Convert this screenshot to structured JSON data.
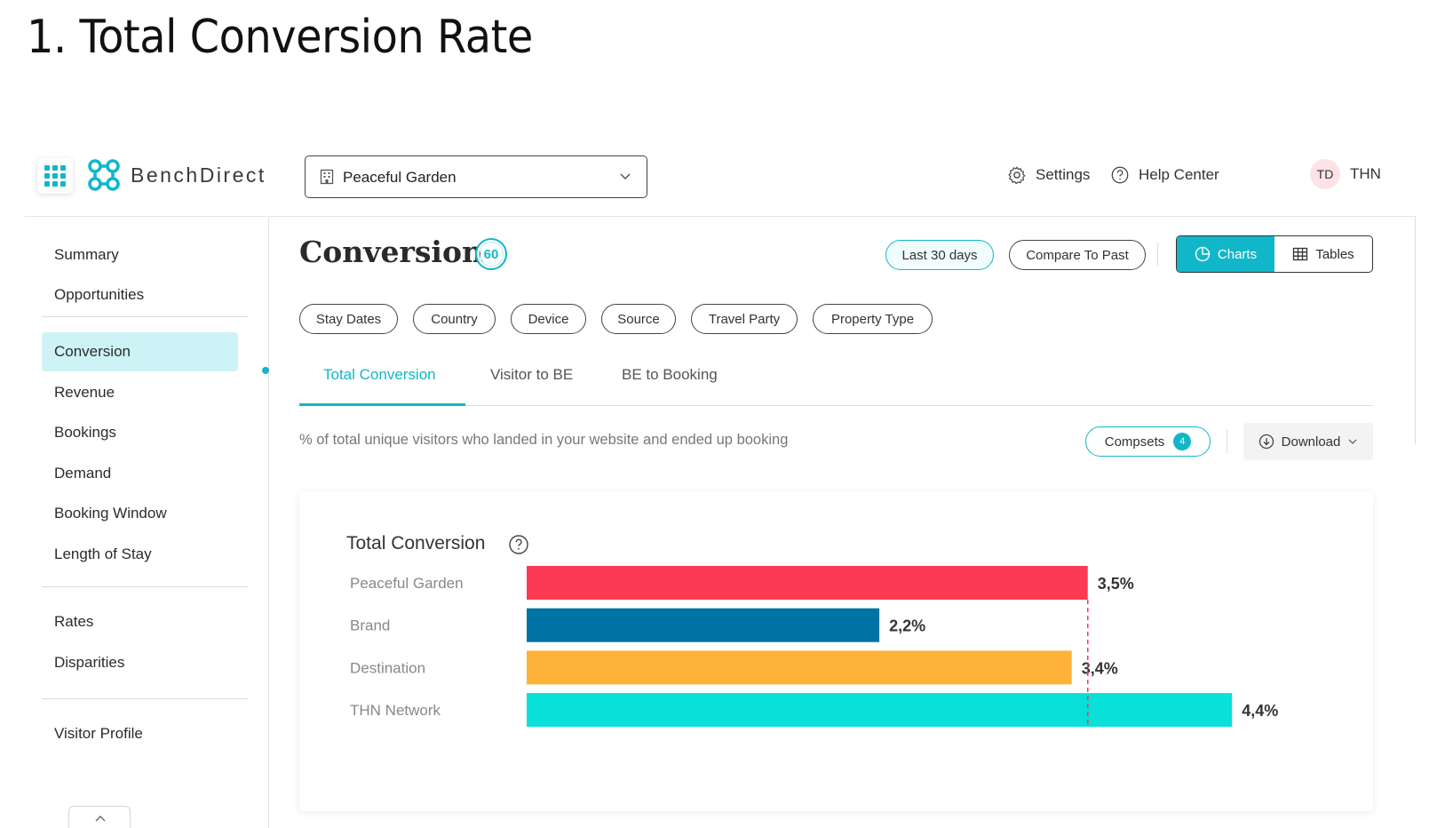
{
  "slide_title": "1. Total Conversion Rate",
  "app": {
    "name": "BenchDirect"
  },
  "header": {
    "property_select": "Peaceful Garden",
    "settings_label": "Settings",
    "help_label": "Help Center",
    "avatar_initials": "TD",
    "username": "THN"
  },
  "sidebar": {
    "items": [
      {
        "label": "Summary",
        "active": false
      },
      {
        "label": "Opportunities",
        "active": false
      },
      {
        "label": "Conversion",
        "active": true
      },
      {
        "label": "Revenue",
        "active": false
      },
      {
        "label": "Bookings",
        "active": false
      },
      {
        "label": "Demand",
        "active": false
      },
      {
        "label": "Booking Window",
        "active": false
      },
      {
        "label": "Length of Stay",
        "active": false
      },
      {
        "label": "Rates",
        "active": false
      },
      {
        "label": "Disparities",
        "active": false
      },
      {
        "label": "Visitor Profile",
        "active": false
      }
    ]
  },
  "main": {
    "title": "Conversion",
    "score": "60",
    "date_range": "Last 30 days",
    "compare": "Compare To Past",
    "view_charts": "Charts",
    "view_tables": "Tables",
    "filters": [
      "Stay Dates",
      "Country",
      "Device",
      "Source",
      "Travel Party",
      "Property Type"
    ],
    "tabs": [
      "Total Conversion",
      "Visitor to BE",
      "BE to Booking"
    ],
    "description": "% of total unique visitors who landed in your website and ended up booking",
    "compsets_label": "Compsets",
    "compsets_count": "4",
    "download_label": "Download"
  },
  "colors": {
    "accent": "#11b7c9",
    "peaceful_garden": "#fb3b56",
    "brand": "#0073a5",
    "destination": "#ffb238",
    "thn_network": "#08e0d9"
  },
  "chart_data": {
    "type": "bar",
    "orientation": "horizontal",
    "title": "Total Conversion",
    "categories": [
      "Peaceful Garden",
      "Brand",
      "Destination",
      "THN Network"
    ],
    "values": [
      3.5,
      2.2,
      3.4,
      4.4
    ],
    "labels": [
      "3,5%",
      "2,2%",
      "3,4%",
      "4,4%"
    ],
    "colors": [
      "#fb3b56",
      "#0073a5",
      "#ffb238",
      "#08e0d9"
    ],
    "reference_line": 3.5,
    "unit": "%"
  }
}
